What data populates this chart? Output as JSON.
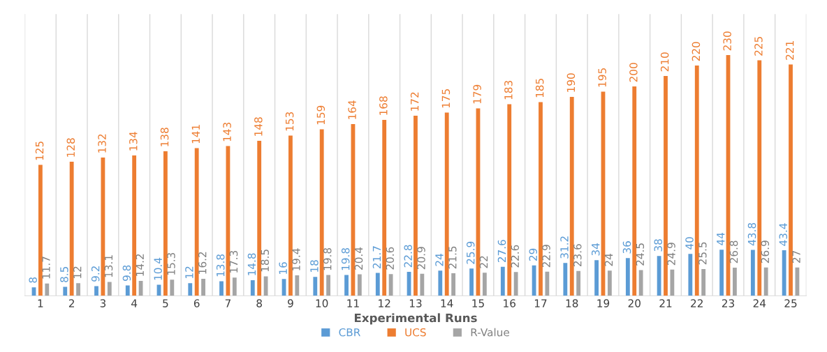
{
  "chart_data": {
    "type": "bar",
    "xlabel": "Experimental Runs",
    "categories": [
      "1",
      "2",
      "3",
      "4",
      "5",
      "6",
      "7",
      "8",
      "9",
      "10",
      "11",
      "12",
      "13",
      "14",
      "15",
      "16",
      "17",
      "18",
      "19",
      "20",
      "21",
      "22",
      "23",
      "24",
      "25"
    ],
    "series": [
      {
        "name": "CBR",
        "color": "#5b9bd5",
        "values": [
          8,
          8.5,
          9.2,
          9.8,
          10.4,
          12,
          13.8,
          14.8,
          16,
          18,
          19.8,
          21.7,
          22.8,
          24,
          25.9,
          27.6,
          29,
          31.2,
          34,
          36,
          38,
          40,
          44,
          43.8,
          43.4
        ]
      },
      {
        "name": "UCS",
        "color": "#ed7d31",
        "values": [
          125,
          128,
          132,
          134,
          138,
          141,
          143,
          148,
          153,
          159,
          164,
          168,
          172,
          175,
          179,
          183,
          185,
          190,
          195,
          200,
          210,
          220,
          230,
          225,
          221
        ]
      },
      {
        "name": "R-Value",
        "color": "#a5a5a5",
        "values": [
          11.7,
          12,
          13.1,
          14.2,
          15.3,
          16.2,
          17.3,
          18.5,
          19.4,
          19.8,
          20.4,
          20.6,
          20.9,
          21.5,
          22,
          22.6,
          22.9,
          23.6,
          24,
          24.5,
          24.9,
          25.5,
          26.8,
          26.9,
          27
        ]
      }
    ],
    "data_labels": true,
    "grid": "x",
    "legend": "bottom"
  }
}
